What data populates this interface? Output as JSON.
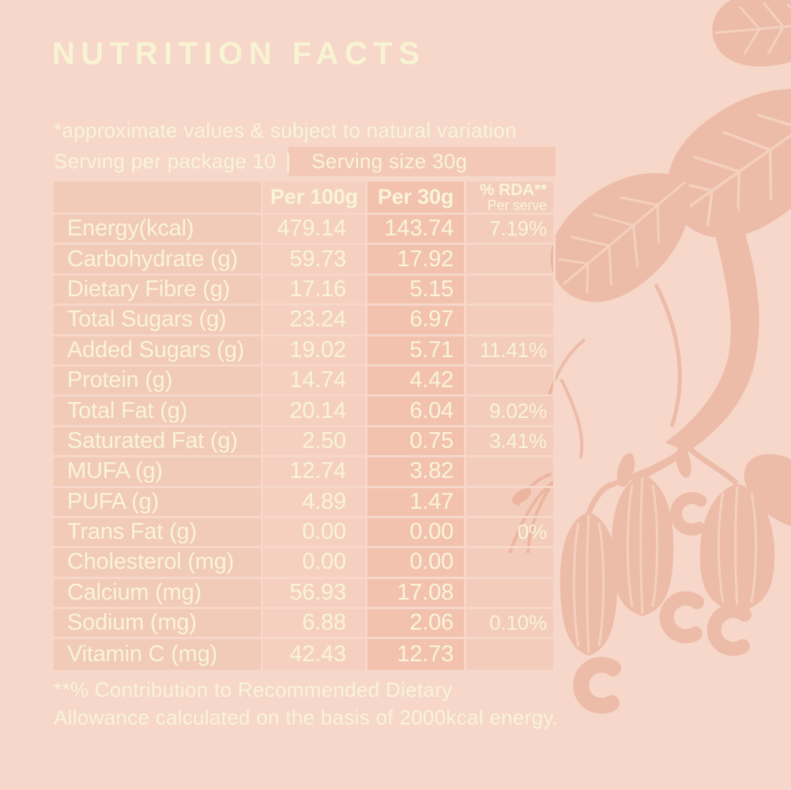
{
  "header": {
    "title": "NUTRITION FACTS"
  },
  "notes": {
    "disclaimer": "*approximate values & subject to natural variation",
    "serving_package": "Serving per package 10",
    "divider": "|",
    "serving_size": "Serving size 30g"
  },
  "table": {
    "headers": {
      "col1": "",
      "per100g": "Per 100g",
      "per30g": "Per 30g",
      "rda_line1": "% RDA**",
      "rda_line2": "Per serve"
    },
    "rows": [
      {
        "label": "Energy(kcal)",
        "per100g": "479.14",
        "per30g": "143.74",
        "rda": "7.19%"
      },
      {
        "label": "Carbohydrate (g)",
        "per100g": "59.73",
        "per30g": "17.92",
        "rda": ""
      },
      {
        "label": "Dietary Fibre (g)",
        "per100g": "17.16",
        "per30g": "5.15",
        "rda": ""
      },
      {
        "label": "Total Sugars (g)",
        "per100g": "23.24",
        "per30g": "6.97",
        "rda": ""
      },
      {
        "label": "Added Sugars (g)",
        "per100g": "19.02",
        "per30g": "5.71",
        "rda": "11.41%"
      },
      {
        "label": "Protein (g)",
        "per100g": "14.74",
        "per30g": "4.42",
        "rda": ""
      },
      {
        "label": "Total Fat (g)",
        "per100g": "20.14",
        "per30g": "6.04",
        "rda": "9.02%"
      },
      {
        "label": "Saturated Fat (g)",
        "per100g": "2.50",
        "per30g": "0.75",
        "rda": "3.41%"
      },
      {
        "label": "MUFA (g)",
        "per100g": "12.74",
        "per30g": "3.82",
        "rda": ""
      },
      {
        "label": "PUFA (g)",
        "per100g": "4.89",
        "per30g": "1.47",
        "rda": ""
      },
      {
        "label": "Trans Fat (g)",
        "per100g": "0.00",
        "per30g": "0.00",
        "rda": "0%"
      },
      {
        "label": "Cholesterol (mg)",
        "per100g": "0.00",
        "per30g": "0.00",
        "rda": ""
      },
      {
        "label": "Calcium (mg)",
        "per100g": "56.93",
        "per30g": "17.08",
        "rda": ""
      },
      {
        "label": "Sodium (mg)",
        "per100g": "6.88",
        "per30g": "2.06",
        "rda": "0.10%"
      },
      {
        "label": "Vitamin C (mg)",
        "per100g": "42.43",
        "per30g": "12.73",
        "rda": ""
      }
    ]
  },
  "footnote": {
    "line1": "**% Contribution to Recommended Dietary",
    "line2": "Allowance calculated on the basis of 2000kcal energy."
  },
  "icons": {
    "illustration": "cashew-branch"
  },
  "colors": {
    "background": "#F6D7C9",
    "text_cream": "#F9F4D8",
    "illustration": "#EDBCA8",
    "cell_overlay_base": "#E89678"
  }
}
